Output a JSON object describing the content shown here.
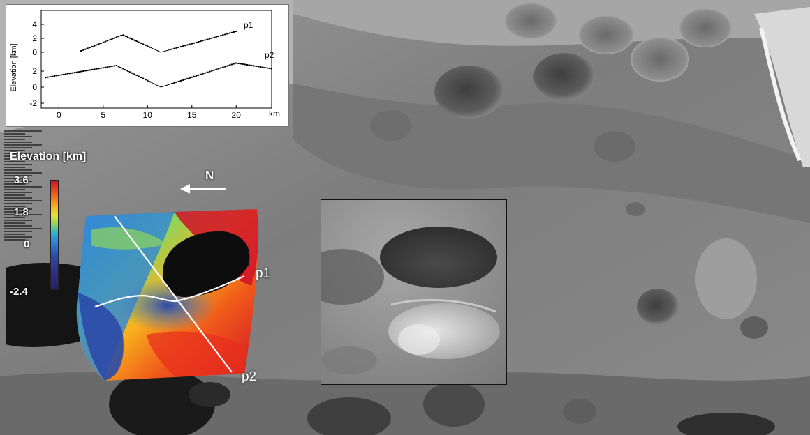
{
  "profile_plot": {
    "ylabel": "Elevation [km]",
    "x_unit": "km",
    "x_ticks": [
      "0",
      "5",
      "10",
      "15",
      "20"
    ],
    "upper_y_ticks": [
      "4",
      "2",
      "0"
    ],
    "lower_y_ticks": [
      "2",
      "0",
      "-2"
    ],
    "series": [
      {
        "name": "p1"
      },
      {
        "name": "p2"
      }
    ]
  },
  "colorbar": {
    "title": "Elevation [km]",
    "ticks": [
      "3.6",
      "1.8",
      "0",
      "-2.4"
    ]
  },
  "north_label": "N",
  "profile_labels": {
    "p1": "p1",
    "p2": "p2"
  }
}
